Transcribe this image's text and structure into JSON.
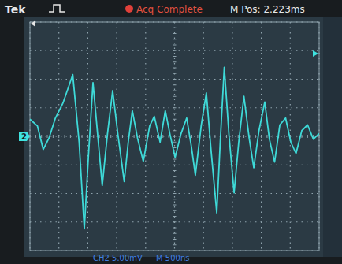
{
  "chart_data": {
    "type": "line",
    "annotations": [
      "Tek",
      "Acq Complete",
      "M Pos: 2.223ms",
      "CH2 5.00mV",
      "M 500ns",
      "2"
    ],
    "x": [
      0,
      130,
      230,
      330,
      440,
      570,
      740,
      850,
      940,
      1010,
      1090,
      1170,
      1250,
      1340,
      1430,
      1520,
      1630,
      1700,
      1770,
      1860,
      1960,
      2070,
      2150,
      2250,
      2340,
      2420,
      2510,
      2610,
      2710,
      2790,
      2860,
      2960,
      3050,
      3130,
      3230,
      3290,
      3360,
      3440,
      3530,
      3610,
      3700,
      3790,
      3870,
      3960,
      4060,
      4140,
      4230,
      4320,
      4420,
      4510,
      4600,
      4700,
      4800,
      4900,
      5000
    ],
    "values": [
      3.0,
      1.8,
      -2.3,
      -0.3,
      3.2,
      5.8,
      10.8,
      -1.0,
      -16.2,
      -3.7,
      9.4,
      0.4,
      -8.6,
      0.4,
      8.0,
      0.4,
      -7.9,
      -1.0,
      4.5,
      -0.3,
      -4.4,
      1.8,
      3.5,
      -1.0,
      4.5,
      0.4,
      -3.7,
      0.4,
      3.2,
      -1.7,
      -6.8,
      1.8,
      7.6,
      -2.3,
      -13.4,
      -1.0,
      12.1,
      0.4,
      -9.9,
      -1.0,
      7.0,
      -0.3,
      -5.5,
      1.0,
      6.0,
      -0.5,
      -4.5,
      2.0,
      3.2,
      -1.0,
      -3.0,
      1.0,
      2.0,
      -0.5,
      0.5
    ],
    "color": "#3fe3e0",
    "xlim": [
      0,
      5000
    ],
    "xticks": [
      0,
      500,
      1000,
      1500,
      2000,
      2500,
      3000,
      3500,
      4000,
      4500,
      5000
    ],
    "ylim": [
      -20,
      20
    ],
    "yticks": [
      -20,
      -15,
      -10,
      -5,
      0,
      5,
      10,
      15,
      20
    ],
    "grid": true,
    "tick_labels": false
  }
}
